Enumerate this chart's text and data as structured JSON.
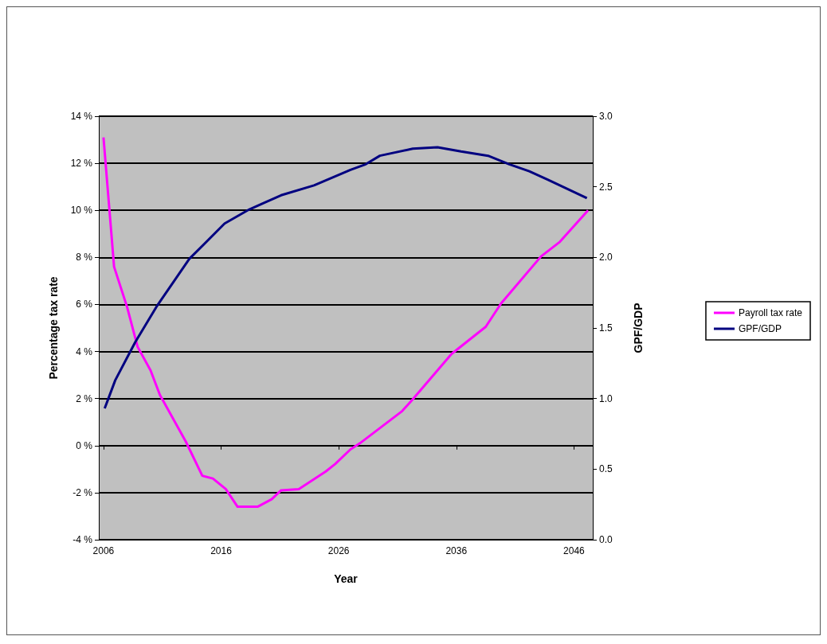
{
  "chart_data": {
    "type": "line",
    "xlabel": "Year",
    "ylabel": "Percentage tax rate",
    "y2label": "GPF/GDP",
    "xlim": [
      2005.6,
      2047.6
    ],
    "xticks": [
      2006,
      2016,
      2026,
      2036,
      2046
    ],
    "ylim": [
      -4,
      14
    ],
    "yticks": [
      {
        "value": -4,
        "label": "-4 %"
      },
      {
        "value": -2,
        "label": "-2 %"
      },
      {
        "value": 0,
        "label": "0 %"
      },
      {
        "value": 2,
        "label": "2 %"
      },
      {
        "value": 4,
        "label": "4 %"
      },
      {
        "value": 6,
        "label": "6 %"
      },
      {
        "value": 8,
        "label": "8 %"
      },
      {
        "value": 10,
        "label": "10 %"
      },
      {
        "value": 12,
        "label": "12 %"
      },
      {
        "value": 14,
        "label": "14 %"
      }
    ],
    "y2lim": [
      0,
      3
    ],
    "y2ticks": [
      {
        "value": 0,
        "label": "0.0"
      },
      {
        "value": 0.5,
        "label": "0.5"
      },
      {
        "value": 1,
        "label": "1.0"
      },
      {
        "value": 1.5,
        "label": "1.5"
      },
      {
        "value": 2,
        "label": "2.0"
      },
      {
        "value": 2.5,
        "label": "2.5"
      },
      {
        "value": 3,
        "label": "3.0"
      }
    ],
    "grid": "y",
    "legend": "right",
    "marker": "none",
    "line_style": "solid",
    "series": [
      {
        "name": "Payroll tax rate",
        "color": "#ff00ff",
        "x": [
          2006,
          2006.9,
          2008,
          2008.9,
          2010,
          2010.8,
          2013,
          2014.4,
          2015.3,
          2016.4,
          2017.4,
          2019.1,
          2020.3,
          2021.1,
          2022.6,
          2024.9,
          2025.7,
          2027,
          2027.8,
          2031.4,
          2032.3,
          2035.6,
          2038.5,
          2039.8,
          2043.2,
          2044.8,
          2047.2
        ],
        "values": [
          13.1,
          7.6,
          5.9,
          4.2,
          3.2,
          2.15,
          0.17,
          -1.28,
          -1.4,
          -1.85,
          -2.6,
          -2.6,
          -2.28,
          -1.9,
          -1.85,
          -1.1,
          -0.78,
          -0.16,
          0.1,
          1.47,
          1.97,
          3.9,
          5.05,
          6.04,
          8.04,
          8.66,
          10.0
        ]
      },
      {
        "name": "GPF/GDP",
        "color": "#000080",
        "axis": "y2",
        "x": [
          2006.1,
          2007,
          2008.7,
          2010.5,
          2013.3,
          2016.3,
          2018.4,
          2021.1,
          2023.9,
          2027,
          2028.3,
          2029.5,
          2032.3,
          2034.4,
          2036.4,
          2038.7,
          2040.5,
          2042.2,
          2043.8,
          2047.1
        ],
        "values": [
          0.93,
          1.13,
          1.4,
          1.65,
          1.99,
          2.24,
          2.34,
          2.44,
          2.51,
          2.62,
          2.66,
          2.72,
          2.77,
          2.78,
          2.75,
          2.72,
          2.66,
          2.61,
          2.55,
          2.42
        ]
      }
    ]
  }
}
